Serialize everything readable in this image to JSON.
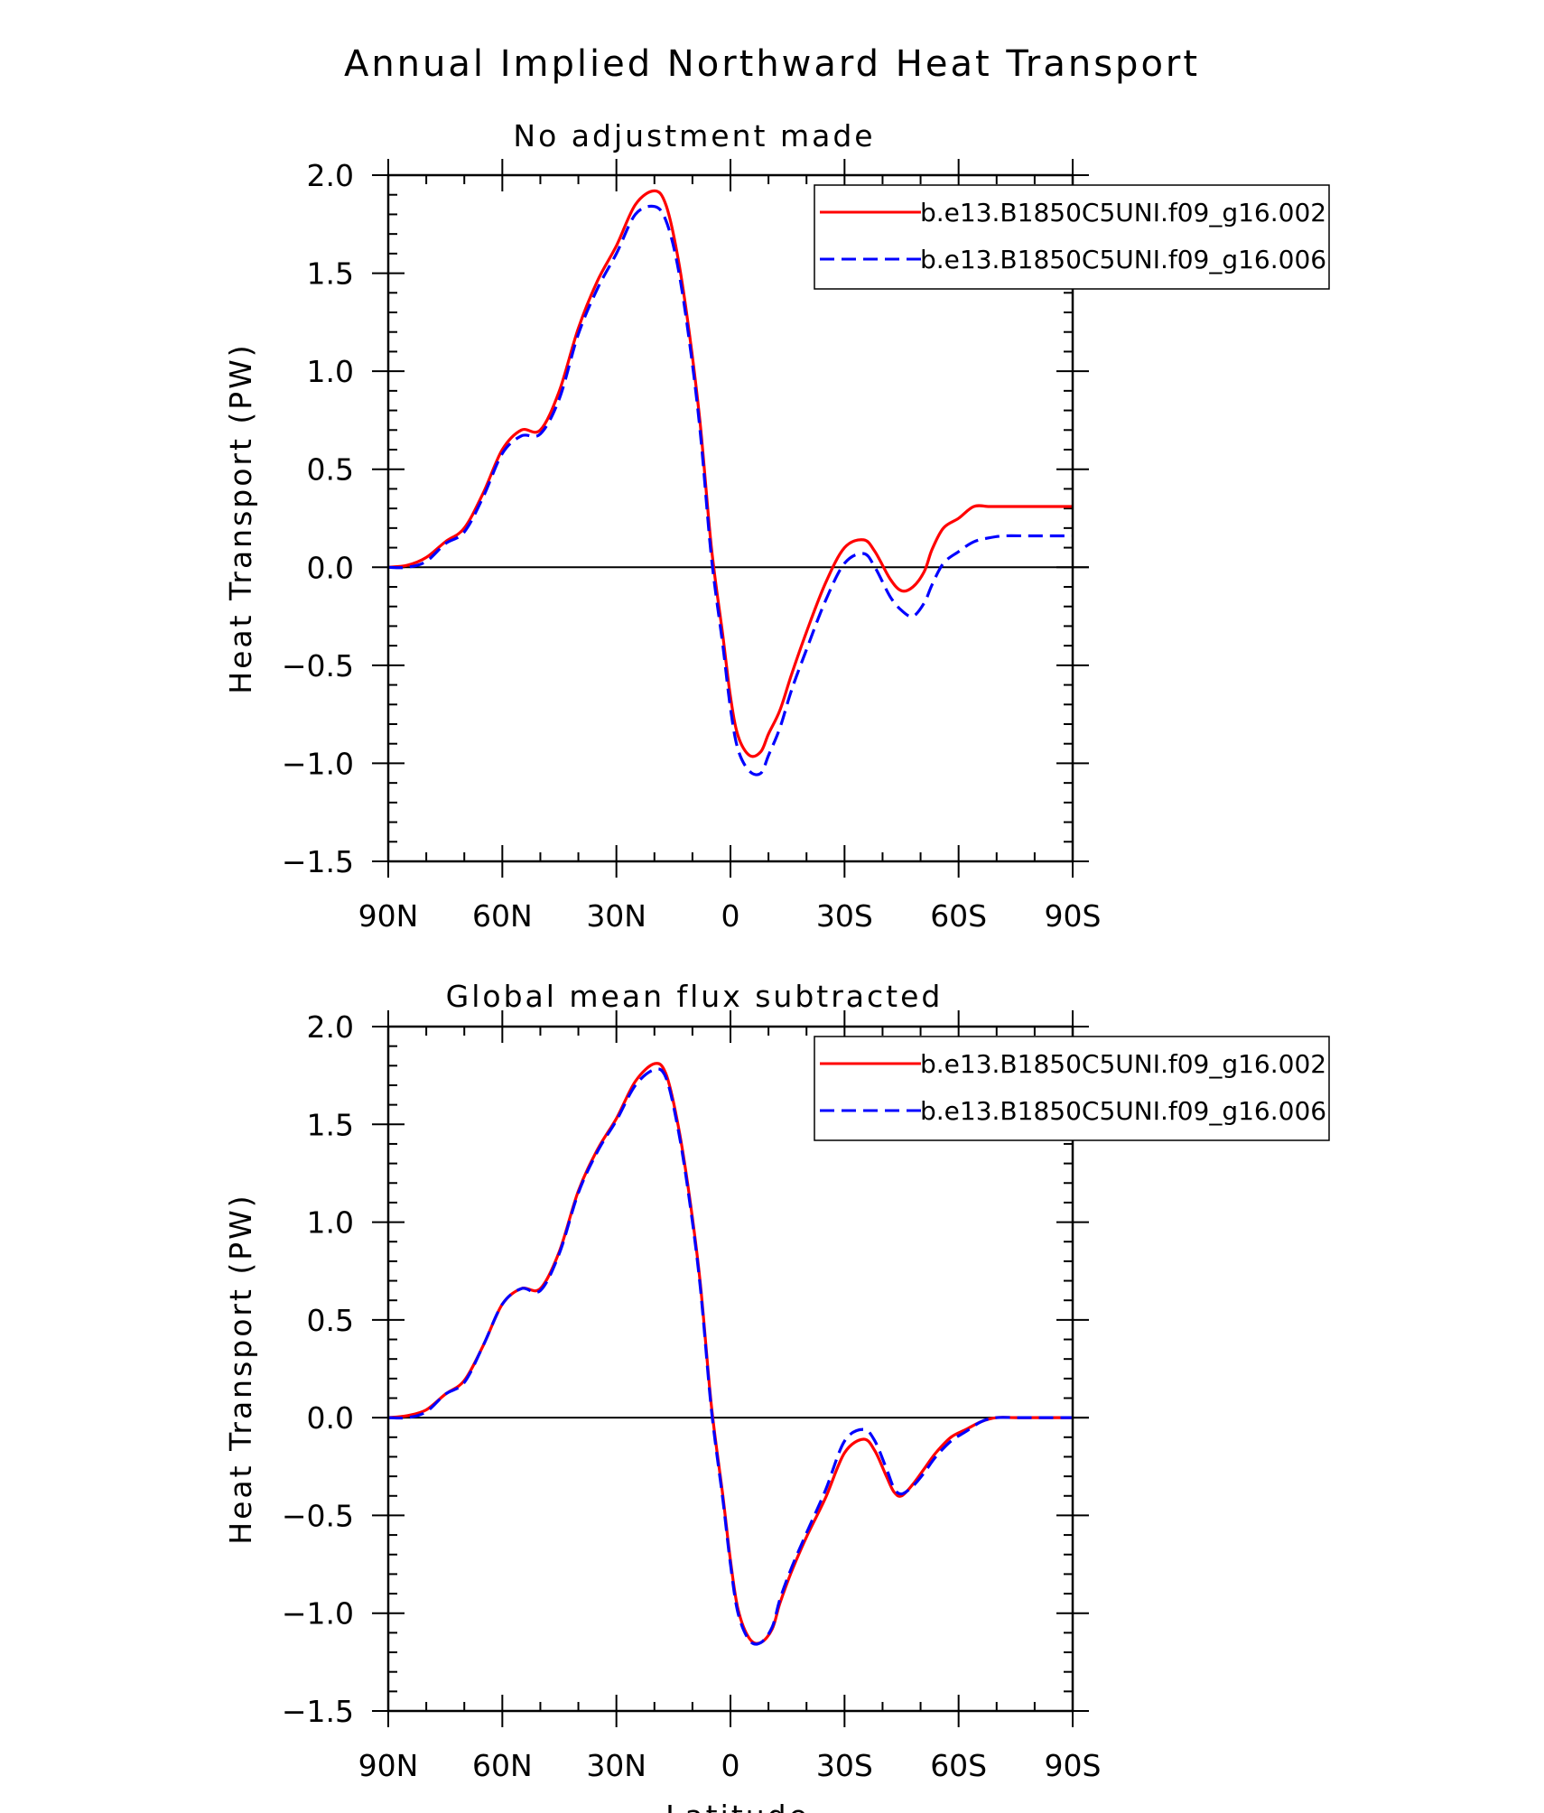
{
  "figure": {
    "title": "Annual Implied Northward Heat Transport"
  },
  "chart_data": [
    {
      "type": "line",
      "title": "No adjustment made",
      "xlabel": "",
      "ylabel": "Heat Transport (PW)",
      "xlim": [
        -90,
        90
      ],
      "ylim": [
        -1.5,
        2.0
      ],
      "x_tick_values": [
        -90,
        -60,
        -30,
        0,
        30,
        60,
        90
      ],
      "x_tick_labels": [
        "90N",
        "60N",
        "30N",
        "0",
        "30S",
        "60S",
        "90S"
      ],
      "y_tick_values": [
        -1.5,
        -1.0,
        -0.5,
        0.0,
        0.5,
        1.0,
        1.5,
        2.0
      ],
      "y_tick_labels": [
        "−1.5",
        "−1.0",
        "−0.5",
        "0.0",
        "0.5",
        "1.0",
        "1.5",
        "2.0"
      ],
      "zero_line": true,
      "legend_position": "top-right",
      "x": [
        -90,
        -85,
        -80,
        -75,
        -70,
        -65,
        -60,
        -55,
        -50,
        -45,
        -40,
        -35,
        -30,
        -25,
        -20,
        -17,
        -14,
        -11,
        -8,
        -5,
        -2,
        0,
        2,
        5,
        8,
        10,
        13,
        16,
        20,
        25,
        30,
        35,
        38,
        42,
        45,
        48,
        51,
        53,
        56,
        60,
        64,
        68,
        72,
        78,
        84,
        90
      ],
      "series": [
        {
          "name": "b.e13.B1850C5UNI.f09_g16.002",
          "color": "#ff0000",
          "dash": "solid",
          "values": [
            0.0,
            0.01,
            0.05,
            0.13,
            0.2,
            0.38,
            0.6,
            0.7,
            0.7,
            0.9,
            1.22,
            1.46,
            1.64,
            1.85,
            1.92,
            1.85,
            1.6,
            1.22,
            0.74,
            0.1,
            -0.35,
            -0.66,
            -0.86,
            -0.96,
            -0.94,
            -0.85,
            -0.73,
            -0.55,
            -0.33,
            -0.08,
            0.1,
            0.14,
            0.08,
            -0.06,
            -0.12,
            -0.1,
            -0.02,
            0.09,
            0.2,
            0.25,
            0.31,
            0.31,
            0.31,
            0.31,
            0.31,
            0.31
          ]
        },
        {
          "name": "b.e13.B1850C5UNI.f09_g16.006",
          "color": "#0000ff",
          "dash": "dashed",
          "values": [
            0.0,
            0.0,
            0.03,
            0.12,
            0.18,
            0.36,
            0.58,
            0.67,
            0.68,
            0.86,
            1.19,
            1.42,
            1.6,
            1.8,
            1.84,
            1.77,
            1.55,
            1.18,
            0.7,
            0.05,
            -0.4,
            -0.72,
            -0.93,
            -1.04,
            -1.05,
            -0.96,
            -0.82,
            -0.63,
            -0.42,
            -0.17,
            0.02,
            0.07,
            0.0,
            -0.15,
            -0.22,
            -0.25,
            -0.18,
            -0.09,
            0.02,
            0.08,
            0.13,
            0.15,
            0.16,
            0.16,
            0.16,
            0.16
          ]
        }
      ]
    },
    {
      "type": "line",
      "title": "Global mean flux subtracted",
      "xlabel": "Latitude",
      "ylabel": "Heat Transport (PW)",
      "xlim": [
        -90,
        90
      ],
      "ylim": [
        -1.5,
        2.0
      ],
      "x_tick_values": [
        -90,
        -60,
        -30,
        0,
        30,
        60,
        90
      ],
      "x_tick_labels": [
        "90N",
        "60N",
        "30N",
        "0",
        "30S",
        "60S",
        "90S"
      ],
      "y_tick_values": [
        -1.5,
        -1.0,
        -0.5,
        0.0,
        0.5,
        1.0,
        1.5,
        2.0
      ],
      "y_tick_labels": [
        "−1.5",
        "−1.0",
        "−0.5",
        "0.0",
        "0.5",
        "1.0",
        "1.5",
        "2.0"
      ],
      "zero_line": true,
      "legend_position": "top-right",
      "x": [
        -90,
        -85,
        -80,
        -75,
        -70,
        -65,
        -60,
        -55,
        -50,
        -45,
        -40,
        -35,
        -30,
        -25,
        -20,
        -17,
        -14,
        -11,
        -8,
        -5,
        -2,
        0,
        2,
        5,
        8,
        11,
        13,
        16,
        20,
        25,
        30,
        35,
        38,
        41,
        43,
        45,
        48,
        51,
        54,
        58,
        62,
        66,
        70,
        75,
        80,
        85,
        90
      ],
      "series": [
        {
          "name": "b.e13.B1850C5UNI.f09_g16.002",
          "color": "#ff0000",
          "dash": "solid",
          "values": [
            0.0,
            0.01,
            0.04,
            0.12,
            0.19,
            0.37,
            0.58,
            0.66,
            0.66,
            0.85,
            1.16,
            1.37,
            1.53,
            1.72,
            1.81,
            1.76,
            1.52,
            1.16,
            0.7,
            0.06,
            -0.4,
            -0.73,
            -0.98,
            -1.13,
            -1.15,
            -1.08,
            -0.95,
            -0.79,
            -0.61,
            -0.41,
            -0.18,
            -0.11,
            -0.17,
            -0.3,
            -0.38,
            -0.4,
            -0.34,
            -0.26,
            -0.18,
            -0.1,
            -0.06,
            -0.02,
            0.0,
            0.0,
            0.0,
            0.0,
            0.0
          ]
        },
        {
          "name": "b.e13.B1850C5UNI.f09_g16.006",
          "color": "#0000ff",
          "dash": "dashed",
          "values": [
            0.0,
            0.0,
            0.03,
            0.12,
            0.18,
            0.37,
            0.58,
            0.66,
            0.65,
            0.84,
            1.15,
            1.36,
            1.52,
            1.7,
            1.78,
            1.74,
            1.5,
            1.14,
            0.68,
            0.04,
            -0.42,
            -0.75,
            -1.0,
            -1.14,
            -1.15,
            -1.07,
            -0.93,
            -0.77,
            -0.59,
            -0.37,
            -0.12,
            -0.06,
            -0.12,
            -0.26,
            -0.36,
            -0.39,
            -0.35,
            -0.28,
            -0.2,
            -0.12,
            -0.07,
            -0.02,
            0.0,
            0.0,
            0.0,
            0.0,
            0.0
          ]
        }
      ]
    }
  ]
}
